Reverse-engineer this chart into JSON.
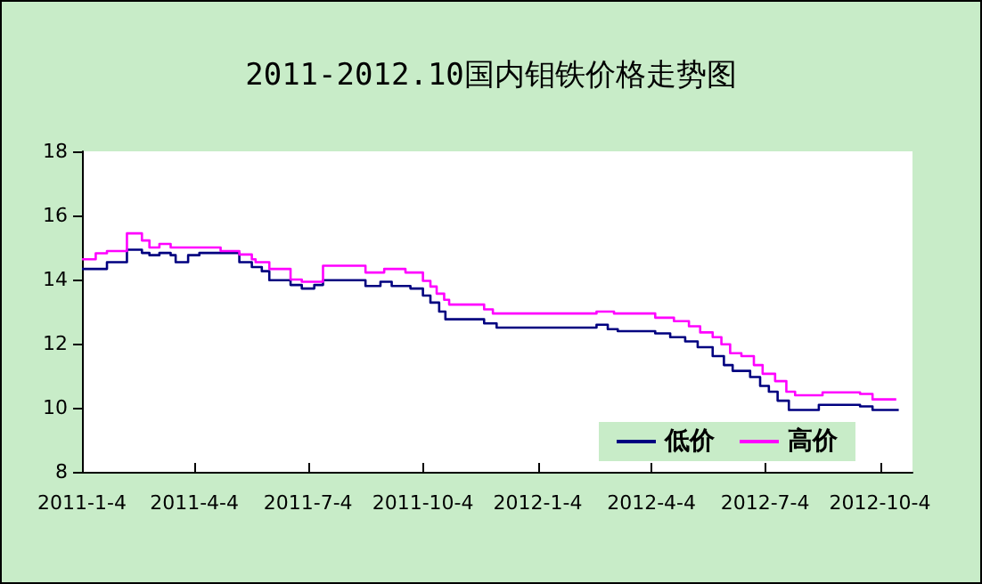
{
  "chart_data": {
    "type": "step",
    "title": "2011-2012.10国内钼铁价格走势图",
    "legend": "bottom right",
    "grid": false,
    "marker": "none",
    "line_style": "solid",
    "xlim": [
      "2011-01-04",
      "2012-10-30"
    ],
    "xticks": [
      {
        "value": "2011-01-04",
        "label": "2011-1-4"
      },
      {
        "value": "2011-04-04",
        "label": "2011-4-4"
      },
      {
        "value": "2011-07-04",
        "label": "2011-7-4"
      },
      {
        "value": "2011-10-04",
        "label": "2011-10-4"
      },
      {
        "value": "2012-01-04",
        "label": "2012-1-4"
      },
      {
        "value": "2012-04-04",
        "label": "2012-4-4"
      },
      {
        "value": "2012-07-04",
        "label": "2012-7-4"
      },
      {
        "value": "2012-10-04",
        "label": "2012-10-4"
      }
    ],
    "ylim": [
      8,
      18
    ],
    "yticks": [
      8,
      10,
      12,
      14,
      16,
      18
    ],
    "series": [
      {
        "name": "低价",
        "color": "#000080",
        "x": [
          "2011-01-04",
          "2011-01-24",
          "2011-02-09",
          "2011-02-21",
          "2011-02-27",
          "2011-03-07",
          "2011-03-16",
          "2011-03-20",
          "2011-03-30",
          "2011-04-08",
          "2011-05-10",
          "2011-05-20",
          "2011-05-28",
          "2011-06-03",
          "2011-06-20",
          "2011-06-29",
          "2011-07-09",
          "2011-07-16",
          "2011-08-19",
          "2011-08-31",
          "2011-09-09",
          "2011-09-24",
          "2011-10-04",
          "2011-10-10",
          "2011-10-17",
          "2011-10-22",
          "2011-11-22",
          "2011-12-02",
          "2012-02-20",
          "2012-02-29",
          "2012-03-08",
          "2012-04-07",
          "2012-04-19",
          "2012-05-01",
          "2012-05-11",
          "2012-05-23",
          "2012-06-01",
          "2012-06-08",
          "2012-06-22",
          "2012-06-30",
          "2012-07-07",
          "2012-07-14",
          "2012-07-23",
          "2012-08-16",
          "2012-09-18",
          "2012-09-28",
          "2012-10-19"
        ],
        "values": [
          14.33,
          14.54,
          14.93,
          14.83,
          14.76,
          14.83,
          14.76,
          14.54,
          14.76,
          14.83,
          14.54,
          14.39,
          14.26,
          13.98,
          13.83,
          13.72,
          13.83,
          13.98,
          13.8,
          13.93,
          13.8,
          13.72,
          13.5,
          13.28,
          13.0,
          12.76,
          12.63,
          12.5,
          12.59,
          12.45,
          12.39,
          12.32,
          12.2,
          12.07,
          11.89,
          11.61,
          11.33,
          11.15,
          10.96,
          10.68,
          10.5,
          10.22,
          9.93,
          10.09,
          10.04,
          9.93,
          9.93
        ]
      },
      {
        "name": "高价",
        "color": "#ff00ff",
        "x": [
          "2011-01-04",
          "2011-01-15",
          "2011-01-24",
          "2011-02-09",
          "2011-02-21",
          "2011-02-27",
          "2011-03-07",
          "2011-03-16",
          "2011-04-25",
          "2011-05-10",
          "2011-05-20",
          "2011-05-23",
          "2011-06-03",
          "2011-06-20",
          "2011-06-29",
          "2011-07-16",
          "2011-08-19",
          "2011-09-03",
          "2011-09-20",
          "2011-10-04",
          "2011-10-10",
          "2011-10-15",
          "2011-10-21",
          "2011-10-25",
          "2011-11-22",
          "2011-11-29",
          "2012-02-20",
          "2012-03-05",
          "2012-04-07",
          "2012-04-22",
          "2012-05-04",
          "2012-05-13",
          "2012-05-23",
          "2012-05-30",
          "2012-06-06",
          "2012-06-15",
          "2012-06-25",
          "2012-07-02",
          "2012-07-12",
          "2012-07-21",
          "2012-07-28",
          "2012-08-19",
          "2012-09-18",
          "2012-09-28",
          "2012-10-17"
        ],
        "values": [
          14.63,
          14.82,
          14.89,
          15.44,
          15.22,
          15.0,
          15.11,
          15.0,
          14.89,
          14.78,
          14.63,
          14.54,
          14.33,
          14.0,
          13.93,
          14.43,
          14.22,
          14.33,
          14.22,
          13.96,
          13.78,
          13.56,
          13.37,
          13.22,
          13.07,
          12.94,
          13.0,
          12.94,
          12.81,
          12.7,
          12.54,
          12.35,
          12.2,
          11.98,
          11.7,
          11.61,
          11.33,
          11.06,
          10.83,
          10.5,
          10.39,
          10.48,
          10.43,
          10.26,
          10.26
        ]
      }
    ]
  }
}
